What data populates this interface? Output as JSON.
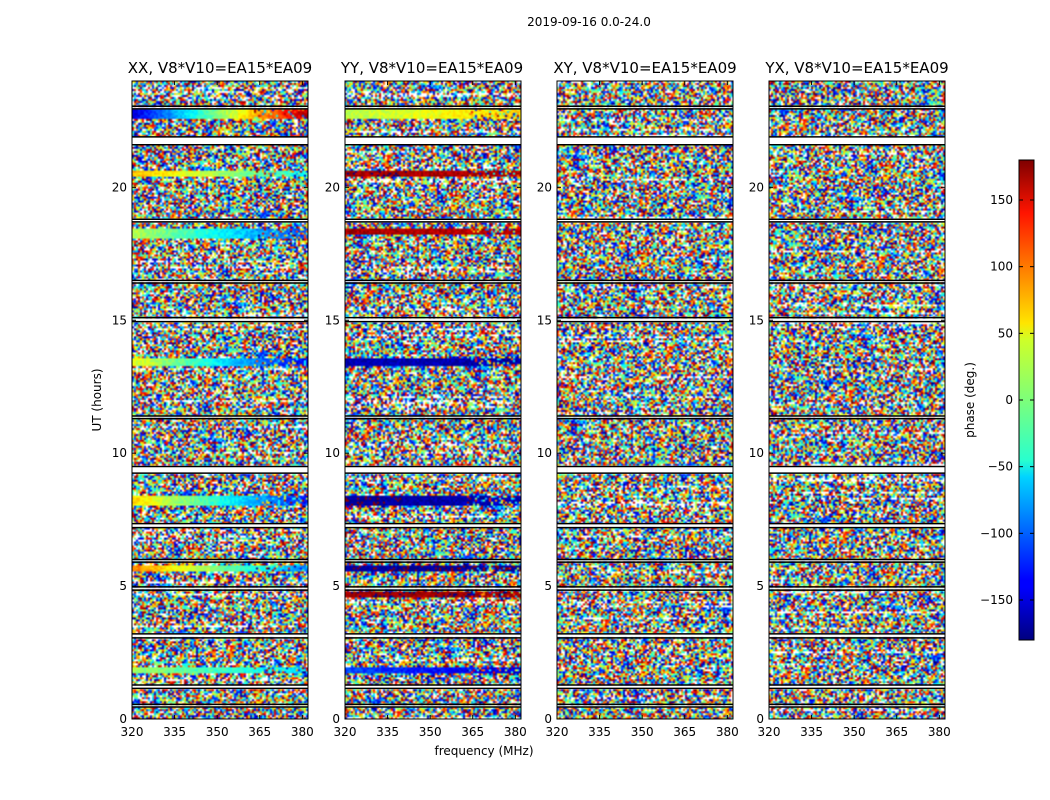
{
  "chart_data": {
    "type": "heatmap",
    "suptitle": "2019-09-16 0.0-24.0",
    "xlabel": "frequency (MHz)",
    "ylabel": "UT (hours)",
    "xlim": [
      320,
      382
    ],
    "ylim": [
      0,
      24
    ],
    "xticks": [
      320,
      335,
      350,
      365,
      380
    ],
    "yticks": [
      0,
      5,
      10,
      15,
      20
    ],
    "colormap": "jet",
    "colorbar": {
      "label": "phase (deg.)",
      "range": [
        -180,
        180
      ],
      "ticks": [
        150,
        100,
        50,
        0,
        -50,
        -100,
        -150
      ],
      "tick_labels": [
        "150",
        "100",
        "50",
        "0",
        "−50",
        "−100",
        "−150"
      ]
    },
    "flagged_time_bands_hours": [
      [
        0.45,
        0.55
      ],
      [
        1.15,
        1.28
      ],
      [
        3.05,
        3.2
      ],
      [
        4.85,
        4.97
      ],
      [
        5.9,
        6.0
      ],
      [
        7.2,
        7.35
      ],
      [
        9.25,
        9.5
      ],
      [
        11.3,
        11.4
      ],
      [
        14.95,
        15.1
      ],
      [
        16.4,
        16.5
      ],
      [
        18.7,
        18.8
      ],
      [
        21.6,
        21.9
      ],
      [
        22.95,
        23.05
      ]
    ],
    "panels": [
      {
        "title": "XX, V8*V10=EA15*EA09",
        "coherent_bands": [
          {
            "t": [
              1.75,
              1.95
            ],
            "phase": [
              10,
              -60
            ]
          },
          {
            "t": [
              5.55,
              5.75
            ],
            "phase": [
              90,
              -90
            ]
          },
          {
            "t": [
              8.0,
              8.4
            ],
            "phase": [
              60,
              -130
            ]
          },
          {
            "t": [
              13.25,
              13.6
            ],
            "phase": [
              40,
              -140
            ]
          },
          {
            "t": [
              18.1,
              18.45
            ],
            "phase": [
              20,
              -110
            ]
          },
          {
            "t": [
              20.4,
              20.65
            ],
            "phase": [
              70,
              -40
            ]
          },
          {
            "t": [
              22.6,
              23.0
            ],
            "phase": [
              -150,
              160
            ]
          }
        ]
      },
      {
        "title": "YY, V8*V10=EA15*EA09",
        "coherent_bands": [
          {
            "t": [
              1.7,
              1.95
            ],
            "phase": [
              -110,
              -150
            ]
          },
          {
            "t": [
              4.6,
              4.8
            ],
            "phase": [
              170,
              170
            ]
          },
          {
            "t": [
              5.55,
              5.75
            ],
            "phase": [
              -170,
              -170
            ]
          },
          {
            "t": [
              8.0,
              8.4
            ],
            "phase": [
              -170,
              -160
            ]
          },
          {
            "t": [
              13.25,
              13.6
            ],
            "phase": [
              -160,
              -165
            ]
          },
          {
            "t": [
              18.2,
              18.45
            ],
            "phase": [
              165,
              160
            ]
          },
          {
            "t": [
              20.4,
              20.65
            ],
            "phase": [
              170,
              160
            ]
          },
          {
            "t": [
              22.6,
              23.0
            ],
            "phase": [
              20,
              60
            ]
          }
        ]
      },
      {
        "title": "XY, V8*V10=EA15*EA09",
        "coherent_bands": []
      },
      {
        "title": "YX, V8*V10=EA15*EA09",
        "coherent_bands": []
      }
    ]
  }
}
